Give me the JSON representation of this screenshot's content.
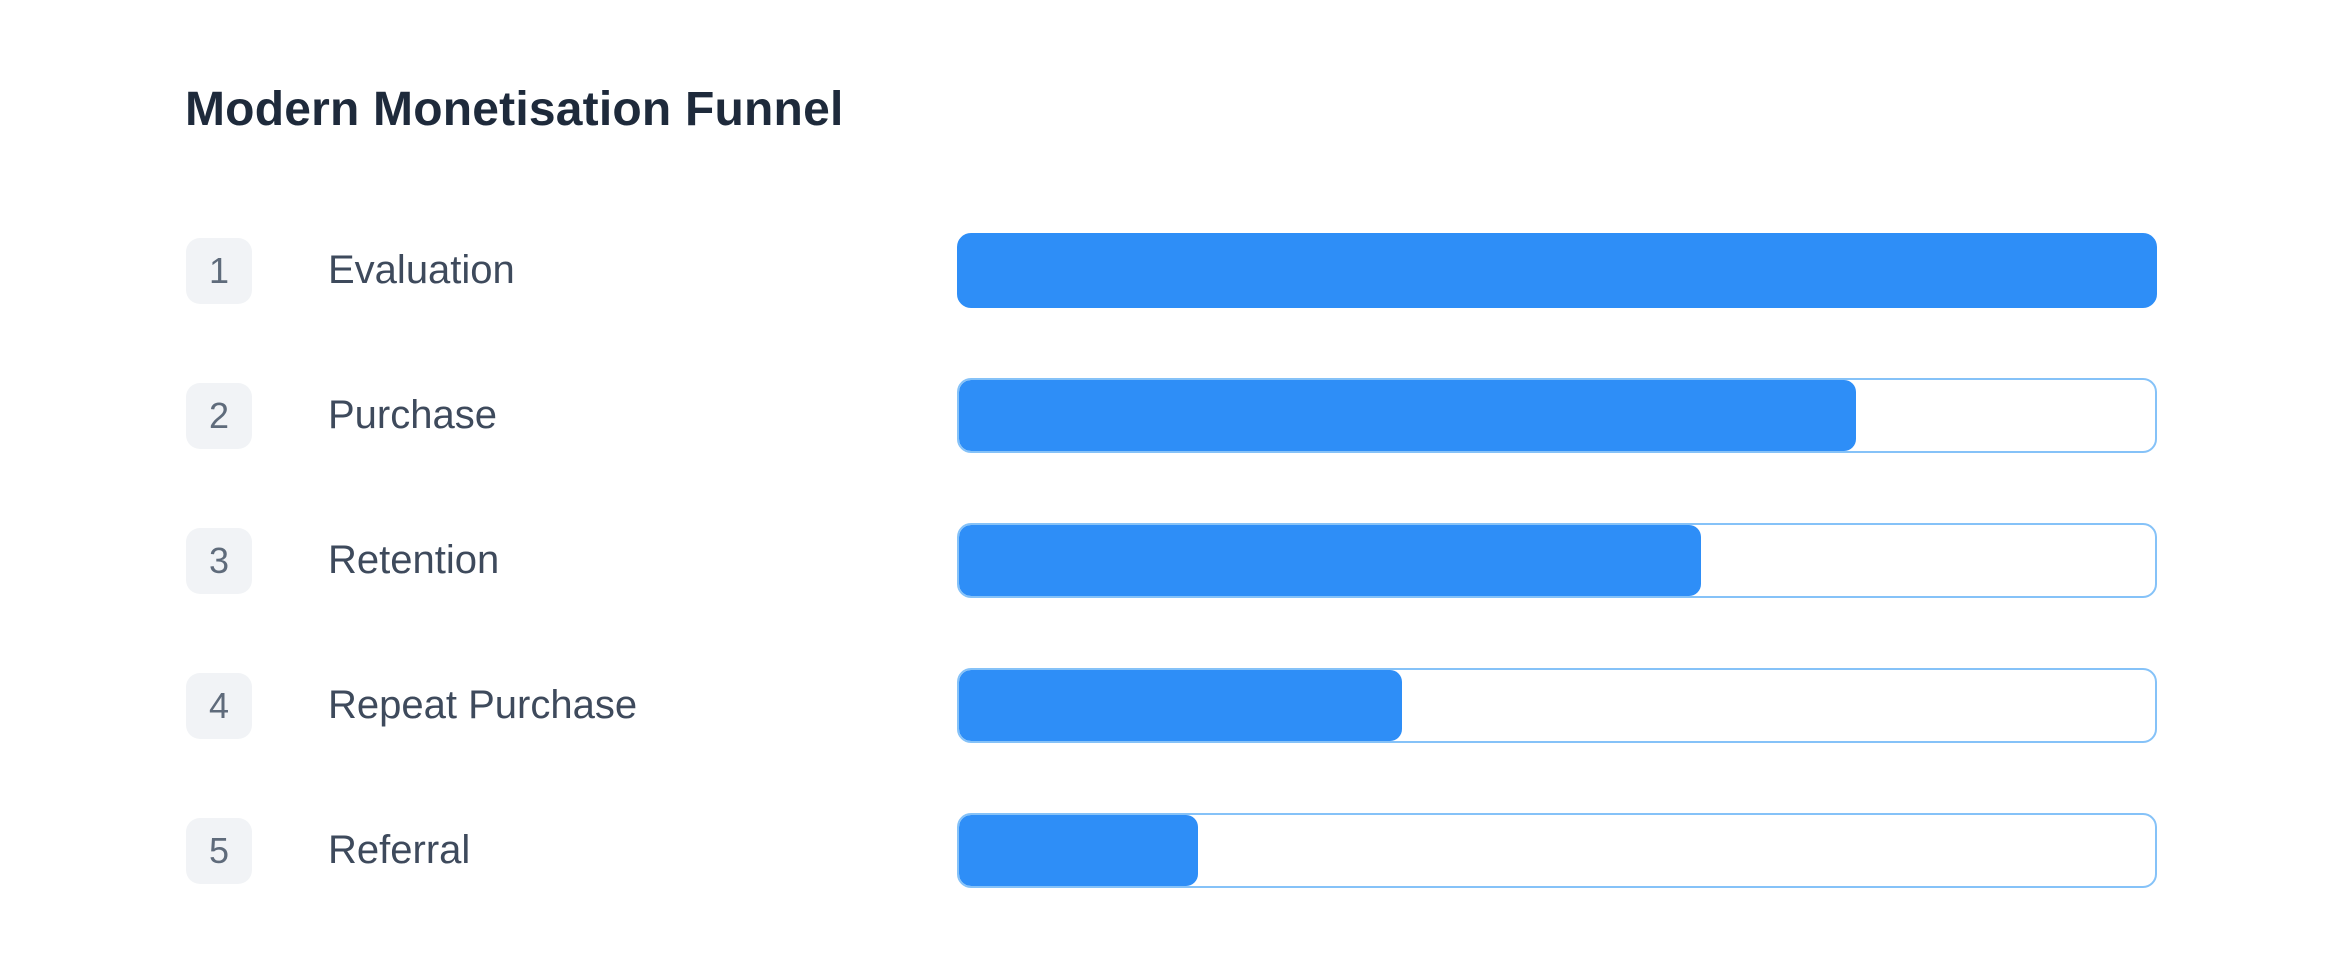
{
  "page": {
    "background": "#ffffff"
  },
  "chart_data": {
    "type": "bar",
    "orientation": "horizontal",
    "title": "Modern Monetisation Funnel",
    "xlabel": "",
    "ylabel": "",
    "xlim": [
      0,
      100
    ],
    "grid": "off",
    "legend": "off",
    "categories": [
      "Evaluation",
      "Purchase",
      "Retention",
      "Repeat Purchase",
      "Referral"
    ],
    "values": [
      100,
      75,
      62,
      37,
      20
    ],
    "value_unit": "percent_of_full_bar_width",
    "stages": [
      {
        "step": "1",
        "label": "Evaluation",
        "percent": 100
      },
      {
        "step": "2",
        "label": "Purchase",
        "percent": 75
      },
      {
        "step": "3",
        "label": "Retention",
        "percent": 62
      },
      {
        "step": "4",
        "label": "Repeat Purchase",
        "percent": 37
      },
      {
        "step": "5",
        "label": "Referral",
        "percent": 20
      }
    ],
    "colors": {
      "bar_fill": "#2e8ef7",
      "bar_border": "#85c2f8",
      "badge_bg": "#f1f3f6",
      "badge_text": "#5f6b7b",
      "label_text": "#3e4a5c",
      "title_text": "#1e2a3b",
      "page_bg": "#ffffff"
    }
  }
}
